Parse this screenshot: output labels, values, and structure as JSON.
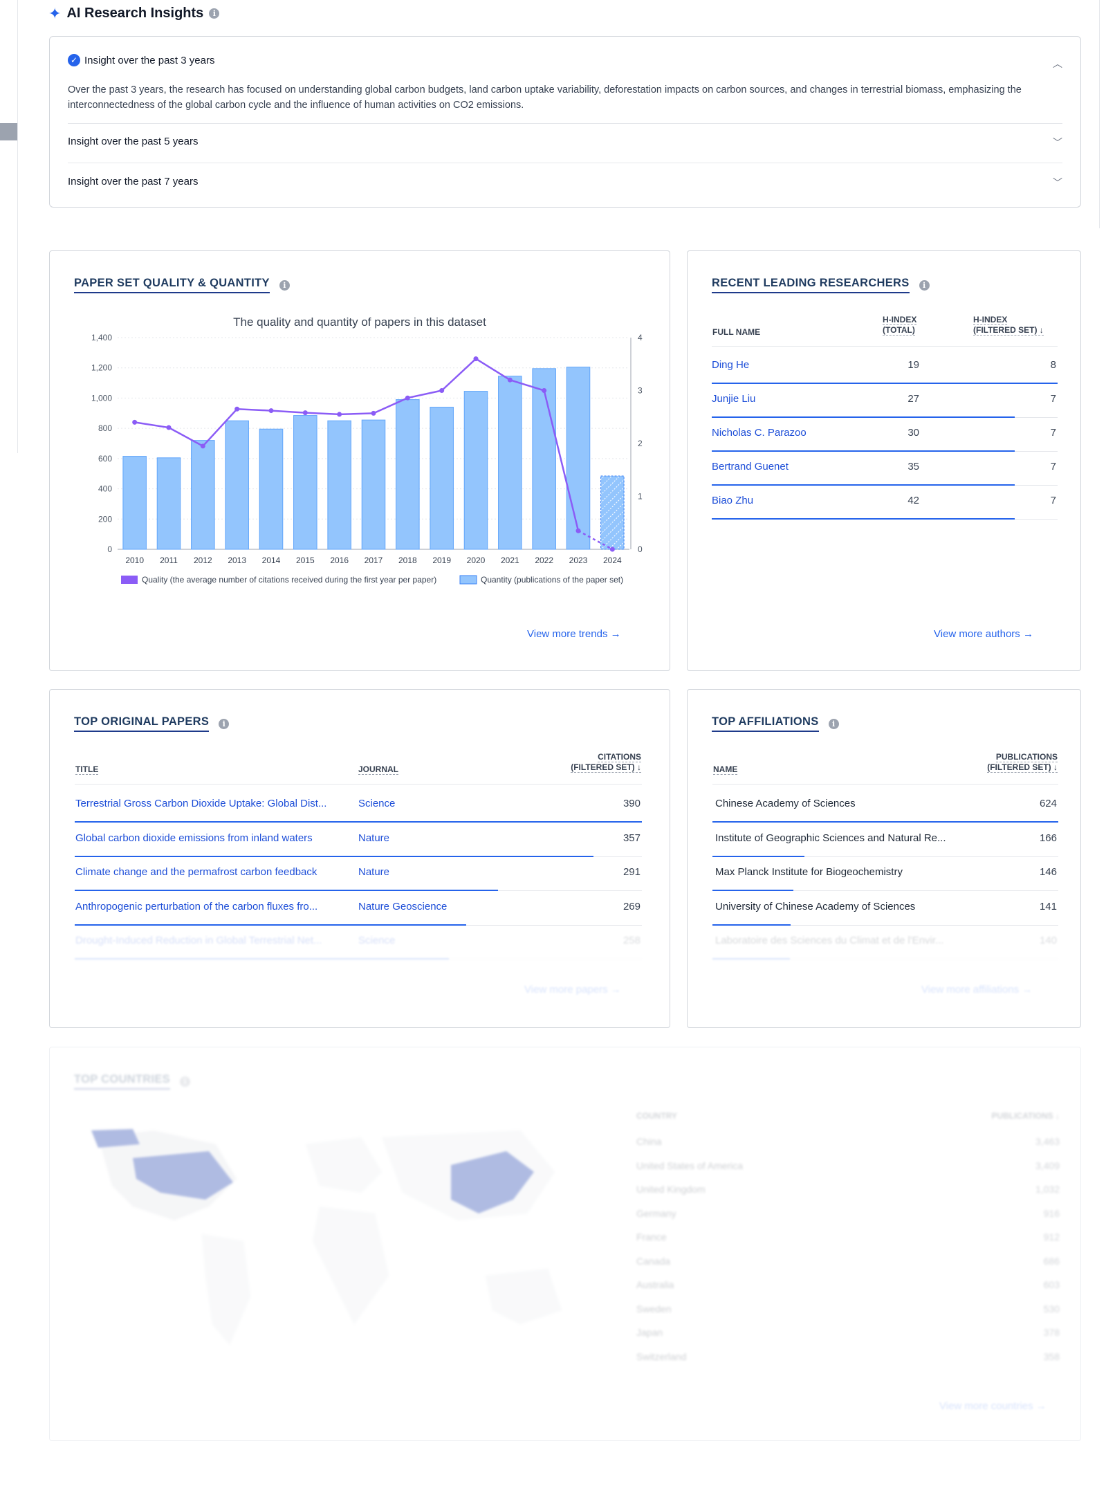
{
  "ai_insights": {
    "title": "AI Research Insights",
    "items": [
      {
        "label": "Insight over the past 3 years",
        "expanded": true,
        "text": "Over the past 3 years, the research has focused on understanding global carbon budgets, land carbon uptake variability, deforestation impacts on carbon sources, and changes in terrestrial biomass, emphasizing the interconnectedness of the global carbon cycle and the influence of human activities on CO2 emissions."
      },
      {
        "label": "Insight over the past 5 years",
        "expanded": false
      },
      {
        "label": "Insight over the past 7 years",
        "expanded": false
      }
    ]
  },
  "paper_set": {
    "title": "PAPER SET QUALITY & QUANTITY",
    "view_more": "View more trends"
  },
  "chart_data": {
    "type": "bar",
    "title": "The quality and quantity of papers in this dataset",
    "categories": [
      "2010",
      "2011",
      "2012",
      "2013",
      "2014",
      "2015",
      "2016",
      "2017",
      "2018",
      "2019",
      "2020",
      "2021",
      "2022",
      "2023",
      "2024"
    ],
    "series": [
      {
        "name": "Quantity (publications of the paper set)",
        "type": "bar",
        "axis": "left",
        "values": [
          615,
          605,
          720,
          850,
          795,
          885,
          850,
          855,
          990,
          940,
          1045,
          1145,
          1195,
          1205,
          485
        ],
        "color": "#93c5fd",
        "partial_last": true
      },
      {
        "name": "Quality (the average number of citations received during the first year per paper)",
        "type": "line",
        "axis": "right",
        "values": [
          2.4,
          2.3,
          1.95,
          2.65,
          2.62,
          2.58,
          2.55,
          2.57,
          2.86,
          3.0,
          3.6,
          3.2,
          3.0,
          0.35,
          0.0
        ],
        "color": "#8b5cf6"
      }
    ],
    "y_left": {
      "range": [
        0,
        1400
      ],
      "ticks": [
        "0",
        "200",
        "400",
        "600",
        "800",
        "1,000",
        "1,200",
        "1,400"
      ]
    },
    "y_right": {
      "range": [
        0,
        4
      ],
      "ticks": [
        "0",
        "1",
        "2",
        "3",
        "4"
      ]
    },
    "legend_position": "bottom"
  },
  "researchers": {
    "title": "RECENT LEADING RESEARCHERS",
    "headers": {
      "name": "FULL NAME",
      "h_total_1": "H-INDEX",
      "h_total_2": "(TOTAL)",
      "h_filtered_1": "H-INDEX",
      "h_filtered_2": "(FILTERED SET) ↓"
    },
    "rows": [
      {
        "name": "Ding He",
        "h_total": "19",
        "h_filtered": "8",
        "bar": 1.0
      },
      {
        "name": "Junjie Liu",
        "h_total": "27",
        "h_filtered": "7",
        "bar": 0.875
      },
      {
        "name": "Nicholas C. Parazoo",
        "h_total": "30",
        "h_filtered": "7",
        "bar": 0.875
      },
      {
        "name": "Bertrand Guenet",
        "h_total": "35",
        "h_filtered": "7",
        "bar": 0.875
      },
      {
        "name": "Biao Zhu",
        "h_total": "42",
        "h_filtered": "7",
        "bar": 0.875
      }
    ],
    "view_more": "View more authors"
  },
  "papers": {
    "title": "TOP ORIGINAL PAPERS",
    "headers": {
      "title": "TITLE",
      "journal": "JOURNAL",
      "citations_1": "CITATIONS",
      "citations_2": "(FILTERED SET) ↓"
    },
    "rows": [
      {
        "title": "Terrestrial Gross Carbon Dioxide Uptake: Global Dist...",
        "journal": "Science",
        "citations": "390",
        "bar": 1.0
      },
      {
        "title": "Global carbon dioxide emissions from inland waters",
        "journal": "Nature",
        "citations": "357",
        "bar": 0.915
      },
      {
        "title": "Climate change and the permafrost carbon feedback",
        "journal": "Nature",
        "citations": "291",
        "bar": 0.746
      },
      {
        "title": "Anthropogenic perturbation of the carbon fluxes fro...",
        "journal": "Nature Geoscience",
        "citations": "269",
        "bar": 0.69
      },
      {
        "title": "Drought-Induced Reduction in Global Terrestrial Net...",
        "journal": "Science",
        "citations": "258",
        "bar": 0.66
      }
    ],
    "view_more": "View more papers"
  },
  "affiliations": {
    "title": "TOP AFFILIATIONS",
    "headers": {
      "name": "NAME",
      "pubs_1": "PUBLICATIONS",
      "pubs_2": "(FILTERED SET) ↓"
    },
    "rows": [
      {
        "name": "Chinese Academy of Sciences",
        "pubs": "624",
        "bar": 1.0
      },
      {
        "name": "Institute of Geographic Sciences and Natural Re...",
        "pubs": "166",
        "bar": 0.266
      },
      {
        "name": "Max Planck Institute for Biogeochemistry",
        "pubs": "146",
        "bar": 0.234
      },
      {
        "name": "University of Chinese Academy of Sciences",
        "pubs": "141",
        "bar": 0.226
      },
      {
        "name": "Laboratoire des Sciences du Climat et de l'Envir...",
        "pubs": "140",
        "bar": 0.224
      }
    ],
    "view_more": "View more affiliations"
  },
  "countries": {
    "title": "TOP COUNTRIES",
    "headers": {
      "country": "COUNTRY",
      "pubs": "PUBLICATIONS ↓"
    },
    "rows": [
      {
        "country": "China",
        "pubs": "3,463"
      },
      {
        "country": "United States of America",
        "pubs": "3,409"
      },
      {
        "country": "United Kingdom",
        "pubs": "1,032"
      },
      {
        "country": "Germany",
        "pubs": "916"
      },
      {
        "country": "France",
        "pubs": "912"
      },
      {
        "country": "Canada",
        "pubs": "686"
      },
      {
        "country": "Australia",
        "pubs": "603"
      },
      {
        "country": "Sweden",
        "pubs": "530"
      },
      {
        "country": "Japan",
        "pubs": "378"
      },
      {
        "country": "Switzerland",
        "pubs": "358"
      }
    ],
    "view_more": "View more countries"
  },
  "colors": {
    "accent": "#2563eb",
    "bar": "#93c5fd",
    "line": "#8b5cf6",
    "title": "#1e3a5f"
  }
}
